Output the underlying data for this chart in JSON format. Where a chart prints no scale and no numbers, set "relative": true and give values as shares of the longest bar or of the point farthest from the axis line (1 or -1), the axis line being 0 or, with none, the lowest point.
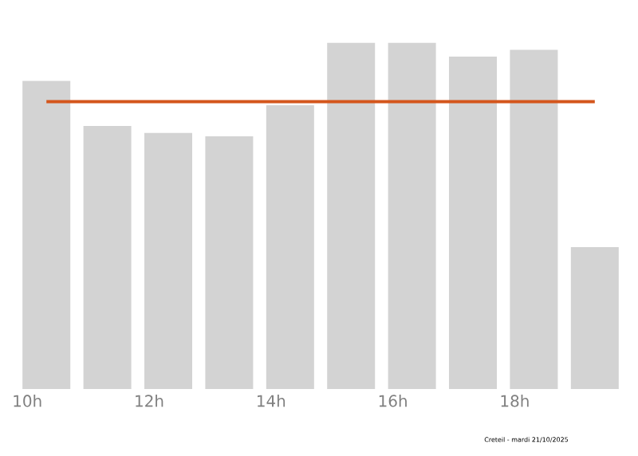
{
  "chart_data": {
    "type": "bar",
    "relative": true,
    "categories": [
      "10h",
      null,
      "12h",
      null,
      "14h",
      null,
      "16h",
      null,
      "18h",
      null
    ],
    "values": [
      0.89,
      0.76,
      0.74,
      0.73,
      0.82,
      1,
      1.0,
      0.96,
      0.98,
      0.41
    ],
    "color": "#d3d3d3",
    "ref_lines": [
      {
        "axis": "y",
        "value": 0.83,
        "color": "#d4561c"
      }
    ],
    "annotations": [
      "Creteil - mardi 21/10/2025"
    ]
  }
}
